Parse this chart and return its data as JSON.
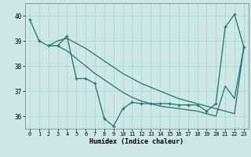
{
  "xlabel": "Humidex (Indice chaleur)",
  "xlim_min": -0.5,
  "xlim_max": 23.5,
  "ylim_min": 35.5,
  "ylim_max": 40.5,
  "yticks": [
    36,
    37,
    38,
    39,
    40
  ],
  "xticks": [
    0,
    1,
    2,
    3,
    4,
    5,
    6,
    7,
    8,
    9,
    10,
    11,
    12,
    13,
    14,
    15,
    16,
    17,
    18,
    19,
    20,
    21,
    22,
    23
  ],
  "bg_color": "#cce8e5",
  "grid_color": "#aad0cc",
  "line_color": "#1e7272",
  "line1_x": [
    0,
    1,
    2,
    3,
    4,
    5,
    6,
    7,
    8,
    9,
    10,
    11,
    12,
    13,
    14,
    15,
    16,
    17,
    18,
    19,
    20,
    21,
    22,
    23
  ],
  "line1_y": [
    39.85,
    39.0,
    38.8,
    38.8,
    39.2,
    37.5,
    37.5,
    37.3,
    35.9,
    35.6,
    36.3,
    36.55,
    36.5,
    36.5,
    36.5,
    36.5,
    36.45,
    36.45,
    36.45,
    36.2,
    36.5,
    39.55,
    40.05,
    38.75
  ],
  "line2_x": [
    2,
    3,
    4,
    5,
    6,
    7,
    8,
    9,
    10,
    11,
    12,
    13,
    14,
    15,
    16,
    17,
    18,
    19,
    20,
    21,
    22,
    23
  ],
  "line2_y": [
    38.8,
    39.0,
    39.1,
    38.9,
    38.7,
    38.45,
    38.2,
    37.95,
    37.7,
    37.5,
    37.3,
    37.15,
    37.0,
    36.85,
    36.7,
    36.6,
    36.5,
    36.4,
    36.3,
    36.2,
    36.1,
    38.75
  ],
  "line3_x": [
    2,
    3,
    4,
    5,
    6,
    7,
    8,
    9,
    10,
    11,
    12,
    13,
    14,
    15,
    16,
    17,
    18,
    19,
    20,
    21,
    22,
    23
  ],
  "line3_y": [
    38.8,
    38.8,
    38.6,
    38.3,
    38.0,
    37.7,
    37.45,
    37.2,
    36.95,
    36.75,
    36.6,
    36.5,
    36.4,
    36.35,
    36.3,
    36.25,
    36.2,
    36.1,
    36.0,
    37.2,
    36.7,
    38.75
  ]
}
